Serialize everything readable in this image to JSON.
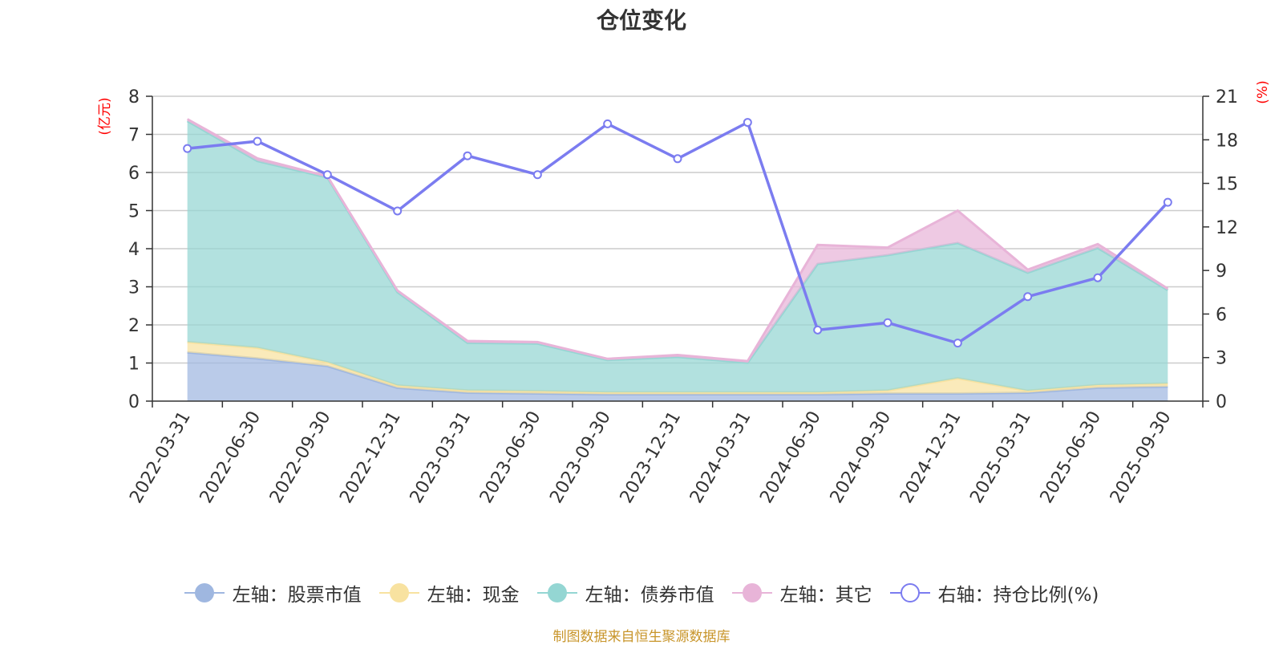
{
  "title": "仓位变化",
  "source_note": "制图数据来自恒生聚源数据库",
  "chart_data": {
    "type": "area",
    "title": "仓位变化",
    "categories": [
      "2022-03-31",
      "2022-06-30",
      "2022-09-30",
      "2022-12-31",
      "2023-03-31",
      "2023-06-30",
      "2023-09-30",
      "2023-12-31",
      "2024-03-31",
      "2024-06-30",
      "2024-09-30",
      "2024-12-31",
      "2025-03-31",
      "2025-06-30",
      "2025-09-30"
    ],
    "left_axis": {
      "label": "(亿元)",
      "min": 0,
      "max": 8,
      "ticks": [
        "0",
        "1",
        "2",
        "3",
        "4",
        "5",
        "6",
        "7",
        "8"
      ],
      "label_color": "#ff0000"
    },
    "right_axis": {
      "label": "(%)",
      "min": 0,
      "max": 21,
      "ticks": [
        "0",
        "3",
        "6",
        "9",
        "12",
        "15",
        "18",
        "21"
      ],
      "label_color": "#ff0000"
    },
    "stacked": true,
    "grid": true,
    "legend_position": "bottom",
    "series": [
      {
        "name": "左轴：股票市值",
        "axis": "left",
        "type": "area",
        "color": "#9fb7e0",
        "values": [
          1.28,
          1.12,
          0.92,
          0.35,
          0.22,
          0.2,
          0.18,
          0.18,
          0.18,
          0.18,
          0.2,
          0.2,
          0.22,
          0.35,
          0.38
        ]
      },
      {
        "name": "左轴：现金",
        "axis": "left",
        "type": "area",
        "color": "#f8e2a0",
        "values": [
          0.27,
          0.28,
          0.1,
          0.06,
          0.06,
          0.06,
          0.05,
          0.05,
          0.05,
          0.05,
          0.08,
          0.4,
          0.05,
          0.07,
          0.08
        ]
      },
      {
        "name": "左轴：债券市值",
        "axis": "left",
        "type": "area",
        "color": "#94d6d3",
        "values": [
          5.8,
          4.9,
          4.85,
          2.45,
          1.25,
          1.25,
          0.85,
          0.93,
          0.78,
          3.37,
          3.55,
          3.55,
          3.1,
          3.6,
          2.45
        ]
      },
      {
        "name": "左轴：其它",
        "axis": "left",
        "type": "area",
        "color": "#e8b4d8",
        "values": [
          0.05,
          0.07,
          0.03,
          0.04,
          0.05,
          0.04,
          0.03,
          0.05,
          0.04,
          0.5,
          0.2,
          0.85,
          0.08,
          0.1,
          0.04
        ]
      },
      {
        "name": "右轴：持仓比例(%)",
        "axis": "right",
        "type": "line",
        "color": "#7b7cf0",
        "values": [
          17.4,
          17.9,
          15.6,
          13.1,
          16.9,
          15.6,
          19.1,
          16.7,
          19.2,
          4.9,
          5.4,
          4.0,
          7.2,
          8.5,
          13.7
        ]
      }
    ]
  }
}
